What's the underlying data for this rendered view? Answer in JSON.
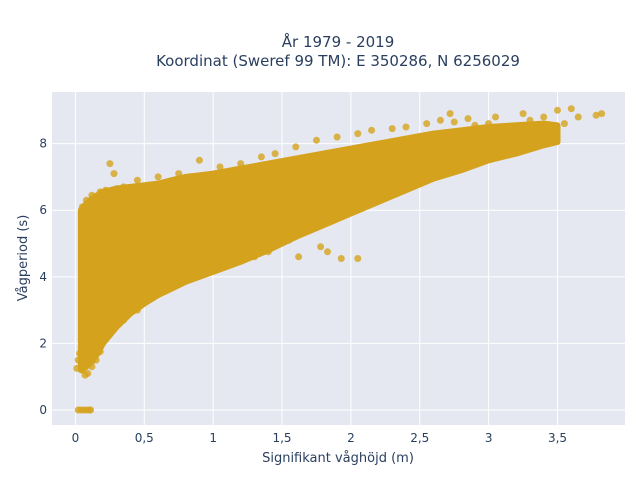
{
  "chart_data": {
    "type": "scatter",
    "title_lines": [
      "År 1979 - 2019",
      "Koordinat (Sweref 99 TM): E 350286, N 6256029"
    ],
    "xlabel": "Signifikant våghöjd (m)",
    "ylabel": "Vågperiod (s)",
    "xlim": [
      -0.17,
      3.99
    ],
    "ylim": [
      -0.45,
      9.55
    ],
    "x_ticks": [
      0,
      0.5,
      1,
      1.5,
      2,
      2.5,
      3,
      3.5
    ],
    "x_tick_labels": [
      "0",
      "0,5",
      "1",
      "1,5",
      "2",
      "2,5",
      "3",
      "3,5"
    ],
    "y_ticks": [
      0,
      2,
      4,
      6,
      8
    ],
    "y_tick_labels": [
      "0",
      "2",
      "4",
      "6",
      "8"
    ],
    "grid": true,
    "legend": "none",
    "colors": {
      "marker": "#d4a21d",
      "plot_background": "#e5e8f1",
      "grid": "#ffffff",
      "text": "#2a3f5f"
    },
    "points": [
      [
        0.02,
        0
      ],
      [
        0.04,
        0
      ],
      [
        0.06,
        0
      ],
      [
        0.08,
        0
      ],
      [
        0.1,
        0
      ],
      [
        0.11,
        0
      ],
      [
        0.01,
        1.25
      ],
      [
        0.02,
        1.5
      ],
      [
        0.03,
        1.7
      ],
      [
        0.05,
        1.2
      ],
      [
        0.07,
        1.05
      ],
      [
        0.09,
        1.1
      ],
      [
        0.12,
        1.3
      ],
      [
        0.15,
        1.5
      ],
      [
        0.18,
        1.75
      ],
      [
        0.05,
        6.1
      ],
      [
        0.08,
        6.3
      ],
      [
        0.12,
        6.45
      ],
      [
        0.18,
        6.55
      ],
      [
        0.22,
        6.6
      ],
      [
        0.3,
        6.65
      ],
      [
        0.35,
        6.7
      ],
      [
        0.25,
        7.4
      ],
      [
        0.28,
        7.1
      ],
      [
        0.45,
        6.9
      ],
      [
        0.6,
        7.0
      ],
      [
        0.75,
        7.1
      ],
      [
        0.9,
        7.5
      ],
      [
        1.05,
        7.3
      ],
      [
        1.2,
        7.4
      ],
      [
        1.35,
        7.6
      ],
      [
        1.45,
        7.7
      ],
      [
        1.6,
        7.9
      ],
      [
        1.75,
        8.1
      ],
      [
        1.9,
        8.2
      ],
      [
        2.05,
        8.3
      ],
      [
        2.15,
        8.4
      ],
      [
        2.3,
        8.45
      ],
      [
        2.4,
        8.5
      ],
      [
        2.55,
        8.6
      ],
      [
        2.65,
        8.7
      ],
      [
        2.72,
        8.9
      ],
      [
        2.75,
        8.65
      ],
      [
        2.85,
        8.75
      ],
      [
        2.9,
        8.55
      ],
      [
        3.0,
        8.6
      ],
      [
        3.05,
        8.8
      ],
      [
        3.1,
        8.3
      ],
      [
        3.2,
        8.5
      ],
      [
        3.25,
        8.9
      ],
      [
        3.3,
        8.7
      ],
      [
        3.35,
        8.55
      ],
      [
        3.4,
        8.8
      ],
      [
        3.45,
        8.3
      ],
      [
        3.5,
        9.0
      ],
      [
        3.55,
        8.6
      ],
      [
        3.6,
        9.05
      ],
      [
        3.65,
        8.8
      ],
      [
        3.78,
        8.85
      ],
      [
        3.82,
        8.9
      ],
      [
        3.42,
        8.05
      ],
      [
        3.2,
        7.85
      ],
      [
        2.9,
        7.9
      ],
      [
        2.6,
        7.45
      ],
      [
        2.45,
        7.2
      ],
      [
        2.3,
        6.85
      ],
      [
        2.15,
        6.6
      ],
      [
        2.0,
        6.3
      ],
      [
        1.85,
        6.0
      ],
      [
        1.7,
        5.6
      ],
      [
        1.55,
        5.1
      ],
      [
        1.4,
        4.75
      ],
      [
        1.3,
        4.6
      ],
      [
        1.2,
        4.5
      ],
      [
        1.05,
        4.35
      ],
      [
        0.95,
        4.2
      ],
      [
        0.85,
        4.0
      ],
      [
        0.75,
        3.85
      ],
      [
        0.65,
        3.65
      ],
      [
        0.55,
        3.35
      ],
      [
        0.45,
        3.0
      ],
      [
        0.35,
        2.7
      ],
      [
        0.25,
        2.3
      ],
      [
        0.18,
        1.95
      ],
      [
        1.83,
        4.75
      ],
      [
        1.93,
        4.55
      ],
      [
        1.62,
        4.6
      ],
      [
        1.78,
        4.9
      ],
      [
        2.05,
        4.55
      ],
      [
        0.4,
        5.3
      ],
      [
        0.55,
        5.6
      ],
      [
        0.7,
        5.8
      ],
      [
        0.85,
        6.0
      ],
      [
        1.0,
        6.2
      ],
      [
        1.15,
        6.4
      ],
      [
        1.3,
        6.6
      ],
      [
        1.5,
        6.8
      ],
      [
        1.7,
        7.1
      ],
      [
        1.9,
        7.4
      ],
      [
        2.1,
        7.6
      ],
      [
        2.3,
        7.8
      ],
      [
        2.5,
        8.0
      ],
      [
        2.7,
        8.2
      ],
      [
        2.9,
        8.3
      ],
      [
        3.1,
        8.4
      ]
    ],
    "band": {
      "x": [
        0.04,
        0.08,
        0.12,
        0.16,
        0.2,
        0.3,
        0.4,
        0.5,
        0.6,
        0.7,
        0.8,
        0.9,
        1.0,
        1.2,
        1.4,
        1.6,
        1.8,
        2.0,
        2.2,
        2.4,
        2.6,
        2.8,
        3.0,
        3.2,
        3.4,
        3.5
      ],
      "upper": [
        6.0,
        6.2,
        6.35,
        6.45,
        6.55,
        6.65,
        6.7,
        6.75,
        6.8,
        6.9,
        7.0,
        7.05,
        7.1,
        7.25,
        7.4,
        7.55,
        7.7,
        7.85,
        8.0,
        8.15,
        8.3,
        8.4,
        8.5,
        8.55,
        8.6,
        8.55
      ],
      "lower": [
        1.2,
        1.3,
        1.45,
        1.7,
        2.0,
        2.5,
        2.9,
        3.2,
        3.45,
        3.65,
        3.85,
        4.0,
        4.15,
        4.45,
        4.8,
        5.2,
        5.55,
        5.9,
        6.25,
        6.6,
        6.95,
        7.2,
        7.5,
        7.7,
        7.95,
        8.05
      ]
    }
  }
}
